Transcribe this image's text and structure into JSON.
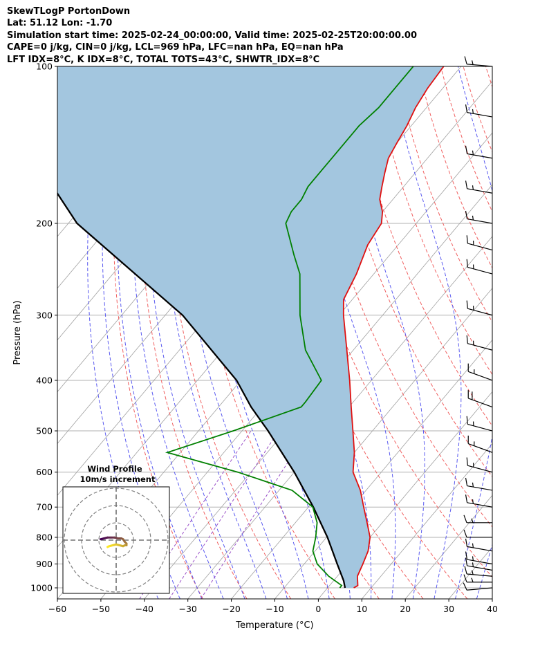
{
  "header": {
    "line1": "SkewTLogP PortonDown",
    "line2": "Lat: 51.12   Lon: -1.70",
    "line3": "Simulation start time: 2025-02-24_00:00:00, Valid time: 2025-02-25T20:00:00.00",
    "line4": "CAPE=0 j/kg, CIN=0 j/kg, LCL=969 hPa, LFC=nan hPa, EQ=nan hPa",
    "line5": "LFT IDX=8°C, K IDX=8°C, TOTAL TOTS=43°C, SHWTR_IDX=8°C"
  },
  "colors": {
    "temperature": "#e01010",
    "dewpoint": "#008000",
    "parcel": "#000000",
    "cape_fill": "#a3c6df",
    "dry_adiabat": "#f06060",
    "moist_adiabat": "#5a5af0",
    "mixing_ratio": "#9a50c8",
    "isotherm": "#a0a0a0",
    "isobar": "#b0b0b0"
  },
  "chart_data": {
    "type": "line",
    "xlabel": "Temperature (°C)",
    "ylabel": "Pressure (hPa)",
    "xlim": [
      -60,
      40
    ],
    "ylim": [
      1050,
      100
    ],
    "yscale": "log",
    "grid": true,
    "xticks": [
      -60,
      -50,
      -40,
      -30,
      -20,
      -10,
      0,
      10,
      20,
      30,
      40
    ],
    "xtick_labels": [
      "−60",
      "−50",
      "−40",
      "−30",
      "−20",
      "−10",
      "0",
      "10",
      "20",
      "30",
      "40"
    ],
    "yticks": [
      1000,
      900,
      800,
      700,
      600,
      500,
      400,
      300,
      200,
      100
    ],
    "ytick_labels": [
      "1000",
      "900",
      "800",
      "700",
      "600",
      "500",
      "400",
      "300",
      "200",
      "100"
    ],
    "temperature": {
      "p": [
        1000,
        990,
        950,
        900,
        850,
        800,
        750,
        700,
        650,
        600,
        550,
        500,
        450,
        400,
        350,
        300,
        280,
        250,
        220,
        200,
        190,
        180,
        170,
        160,
        150,
        140,
        130,
        120,
        110,
        100
      ],
      "t": [
        6,
        6.5,
        4.6,
        3.5,
        2.2,
        0,
        -3.5,
        -7.3,
        -11.3,
        -16.5,
        -20,
        -24.5,
        -29.5,
        -35,
        -41.5,
        -49,
        -52,
        -54,
        -57,
        -58,
        -60,
        -63,
        -65,
        -67,
        -69,
        -70,
        -71,
        -72.5,
        -73.5,
        -74
      ]
    },
    "dewpoint": {
      "p": [
        1000,
        990,
        950,
        900,
        850,
        800,
        750,
        700,
        650,
        600,
        550,
        500,
        450,
        440,
        400,
        350,
        300,
        250,
        230,
        200,
        190,
        180,
        170,
        160,
        150,
        140,
        130,
        120,
        110,
        100
      ],
      "t": [
        2.8,
        2.8,
        -2,
        -7,
        -10.5,
        -12.5,
        -15,
        -19,
        -27,
        -43,
        -63,
        -52,
        -41,
        -41,
        -41.5,
        -51,
        -59,
        -67,
        -72,
        -80,
        -81,
        -81,
        -82,
        -82,
        -82,
        -82,
        -82,
        -81,
        -81,
        -81
      ]
    },
    "parcel": {
      "p": [
        1000,
        969,
        900,
        800,
        700,
        600,
        500,
        450,
        400,
        300,
        200,
        100
      ],
      "t": [
        4,
        2.3,
        -2.4,
        -9.8,
        -18.9,
        -30,
        -44,
        -52.5,
        -61,
        -86,
        -128,
        -182
      ]
    },
    "wind_barbs": {
      "p": [
        1000,
        975,
        950,
        925,
        900,
        850,
        800,
        750,
        700,
        650,
        600,
        550,
        500,
        450,
        400,
        350,
        300,
        250,
        225,
        200,
        175,
        150,
        125,
        100
      ],
      "speed_kt": [
        10,
        15,
        15,
        15,
        15,
        15,
        10,
        15,
        15,
        15,
        15,
        15,
        15,
        20,
        15,
        15,
        15,
        15,
        15,
        15,
        15,
        15,
        15,
        15
      ],
      "dir_deg": [
        265,
        270,
        275,
        280,
        280,
        280,
        270,
        270,
        280,
        280,
        285,
        290,
        285,
        290,
        290,
        285,
        285,
        285,
        285,
        280,
        280,
        280,
        280,
        275
      ]
    },
    "hodograph": {
      "title": "Wind Profile",
      "subtitle": "10m/s increment",
      "rings_ms": [
        10,
        20,
        30
      ],
      "u": [
        -9,
        -7,
        -5,
        -3,
        -1,
        1,
        3,
        4,
        5,
        6,
        6,
        5,
        4,
        2,
        0,
        -2,
        -4,
        -5
      ],
      "v": [
        0.5,
        1,
        1.5,
        1.5,
        1.5,
        1,
        1,
        0.5,
        -1,
        -2,
        -3,
        -3,
        -3.5,
        -3,
        -2.5,
        -3,
        -3.5,
        -4
      ]
    }
  }
}
